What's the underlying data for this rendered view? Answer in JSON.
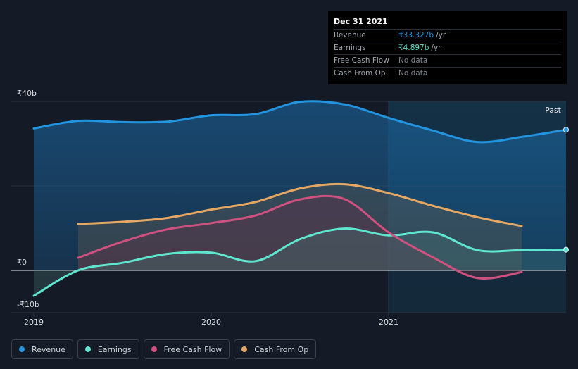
{
  "colors": {
    "background": "#151b26",
    "revenue": "#2394df",
    "earnings": "#5ee6cf",
    "free_cash_flow": "#d0517f",
    "cash_from_op": "#e6a762"
  },
  "tooltip": {
    "date": "Dec 31 2021",
    "rows": [
      {
        "label": "Revenue",
        "value": "₹33.327b",
        "unit": "/yr"
      },
      {
        "label": "Earnings",
        "value": "₹4.897b",
        "unit": "/yr"
      },
      {
        "label": "Free Cash Flow",
        "value": "No data",
        "unit": ""
      },
      {
        "label": "Cash From Op",
        "value": "No data",
        "unit": ""
      }
    ]
  },
  "legend": [
    {
      "label": "Revenue",
      "color": "#2394df"
    },
    {
      "label": "Earnings",
      "color": "#5ee6cf"
    },
    {
      "label": "Free Cash Flow",
      "color": "#d0517f"
    },
    {
      "label": "Cash From Op",
      "color": "#e6a762"
    }
  ],
  "chart_data": {
    "type": "area",
    "past_label": "Past",
    "y_unit": "₹ billions",
    "ylim": [
      -10,
      40
    ],
    "y_ticks": [
      {
        "value": 40,
        "label": "₹40b"
      },
      {
        "value": 0,
        "label": "₹0"
      },
      {
        "value": -10,
        "label": "-₹10b"
      }
    ],
    "xlim": [
      2019.0,
      2022.0
    ],
    "x_ticks": [
      {
        "value": 2019.0,
        "label": "2019"
      },
      {
        "value": 2020.0,
        "label": "2020"
      },
      {
        "value": 2021.0,
        "label": "2021"
      }
    ],
    "past_start": 2021.0,
    "series": [
      {
        "name": "Revenue",
        "color": "#2394df",
        "points": [
          [
            2019.0,
            33.6
          ],
          [
            2019.25,
            35.4
          ],
          [
            2019.5,
            35.1
          ],
          [
            2019.75,
            35.2
          ],
          [
            2020.0,
            36.7
          ],
          [
            2020.25,
            37.0
          ],
          [
            2020.5,
            39.9
          ],
          [
            2020.75,
            39.3
          ],
          [
            2021.0,
            36.1
          ],
          [
            2021.25,
            33.1
          ],
          [
            2021.5,
            30.4
          ],
          [
            2021.75,
            31.6
          ],
          [
            2022.0,
            33.3
          ]
        ],
        "marker_end": true
      },
      {
        "name": "Earnings",
        "color": "#5ee6cf",
        "points": [
          [
            2019.0,
            -6.0
          ],
          [
            2019.25,
            0.0
          ],
          [
            2019.5,
            1.8
          ],
          [
            2019.75,
            3.9
          ],
          [
            2020.0,
            4.2
          ],
          [
            2020.25,
            2.2
          ],
          [
            2020.5,
            7.4
          ],
          [
            2020.75,
            9.9
          ],
          [
            2021.0,
            8.3
          ],
          [
            2021.25,
            9.0
          ],
          [
            2021.5,
            4.8
          ],
          [
            2021.75,
            4.8
          ],
          [
            2022.0,
            4.9
          ]
        ],
        "marker_end": true
      },
      {
        "name": "Free Cash Flow",
        "color": "#d0517f",
        "points": [
          [
            2019.25,
            3.0
          ],
          [
            2019.5,
            6.8
          ],
          [
            2019.75,
            9.7
          ],
          [
            2020.0,
            11.2
          ],
          [
            2020.25,
            13.0
          ],
          [
            2020.5,
            16.8
          ],
          [
            2020.75,
            16.9
          ],
          [
            2021.0,
            9.0
          ],
          [
            2021.25,
            3.1
          ],
          [
            2021.5,
            -1.8
          ],
          [
            2021.75,
            -0.4
          ]
        ],
        "marker_end": false
      },
      {
        "name": "Cash From Op",
        "color": "#e6a762",
        "points": [
          [
            2019.25,
            11.0
          ],
          [
            2019.5,
            11.5
          ],
          [
            2019.75,
            12.4
          ],
          [
            2020.0,
            14.4
          ],
          [
            2020.25,
            16.2
          ],
          [
            2020.5,
            19.4
          ],
          [
            2020.75,
            20.4
          ],
          [
            2021.0,
            18.3
          ],
          [
            2021.25,
            15.3
          ],
          [
            2021.5,
            12.6
          ],
          [
            2021.75,
            10.5
          ]
        ],
        "marker_end": false
      }
    ]
  }
}
